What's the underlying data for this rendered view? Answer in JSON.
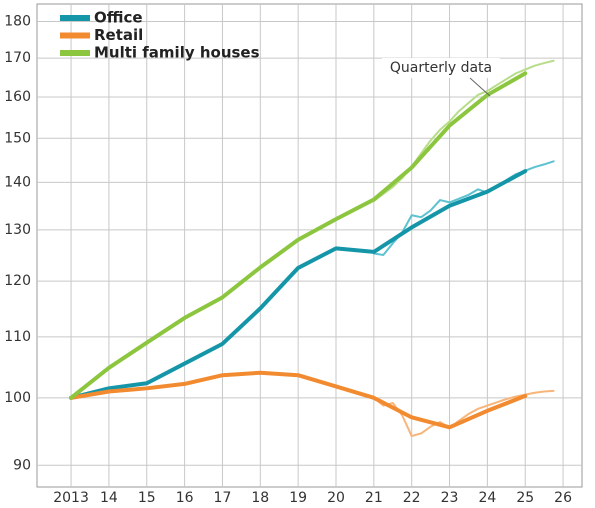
{
  "chart_data": {
    "type": "line",
    "x": [
      2013,
      2014,
      2015,
      2016,
      2017,
      2018,
      2019,
      2020,
      2021,
      2022,
      2023,
      2024,
      2025
    ],
    "series": [
      {
        "name": "Office",
        "color": "#1596a8",
        "values": [
          100,
          101.5,
          102.3,
          105.5,
          108.8,
          115,
          122.5,
          126.3,
          125.6,
          130.5,
          135,
          138,
          142.5
        ]
      },
      {
        "name": "Retail",
        "color": "#f28a30",
        "values": [
          100,
          101,
          101.5,
          102.2,
          103.6,
          104,
          103.6,
          101.8,
          100,
          97,
          95.5,
          98,
          100.3
        ]
      },
      {
        "name": "Multi family houses",
        "color": "#8cc63f",
        "values": [
          100,
          104.8,
          109,
          113.3,
          117,
          122.6,
          128,
          132.2,
          136.3,
          143.3,
          153,
          160.5,
          166
        ]
      }
    ],
    "quarterly_x": [
      2021,
      2021.25,
      2021.5,
      2021.75,
      2022,
      2022.25,
      2022.5,
      2022.75,
      2023,
      2023.25,
      2023.5,
      2023.75,
      2024,
      2024.25,
      2024.5,
      2024.75,
      2025,
      2025.25,
      2025.5,
      2025.75
    ],
    "quarterly_series": [
      {
        "color": "#5cc2d0",
        "values": [
          125.3,
          125,
          127.3,
          129.5,
          133,
          132.6,
          134,
          136.2,
          135.7,
          136.5,
          137.3,
          138.5,
          137.8,
          139,
          140.5,
          141.8,
          142.6,
          143.4,
          144,
          144.7
        ]
      },
      {
        "color": "#f8b57a",
        "values": [
          100,
          98.8,
          99.2,
          97.3,
          94.2,
          94.6,
          95.6,
          96.3,
          95.4,
          96.5,
          97.5,
          98.3,
          98.8,
          99.3,
          99.8,
          100.2,
          100.5,
          100.8,
          101,
          101.1
        ]
      },
      {
        "color": "#b7dd8a",
        "values": [
          136,
          137.5,
          139,
          141,
          143.5,
          146.5,
          149.5,
          152,
          154,
          156.5,
          158.5,
          160.5,
          161.5,
          163,
          164.5,
          166,
          167,
          168,
          168.7,
          169.3
        ]
      }
    ],
    "annotation": "Quarterly data",
    "log_scale": true,
    "ylim": [
      87,
      185
    ],
    "yticks": [
      90,
      100,
      110,
      120,
      130,
      140,
      150,
      160,
      170,
      180
    ],
    "xlim": [
      2012.1,
      2026.5
    ],
    "xticks": [
      {
        "value": 2013,
        "label": "2013"
      },
      {
        "value": 2014,
        "label": "14"
      },
      {
        "value": 2015,
        "label": "15"
      },
      {
        "value": 2016,
        "label": "16"
      },
      {
        "value": 2017,
        "label": "17"
      },
      {
        "value": 2018,
        "label": "18"
      },
      {
        "value": 2019,
        "label": "19"
      },
      {
        "value": 2020,
        "label": "20"
      },
      {
        "value": 2021,
        "label": "21"
      },
      {
        "value": 2022,
        "label": "22"
      },
      {
        "value": 2023,
        "label": "23"
      },
      {
        "value": 2024,
        "label": "24"
      },
      {
        "value": 2025,
        "label": "25"
      },
      {
        "value": 2026,
        "label": "26"
      }
    ],
    "grid": true,
    "legend": "top-left"
  }
}
